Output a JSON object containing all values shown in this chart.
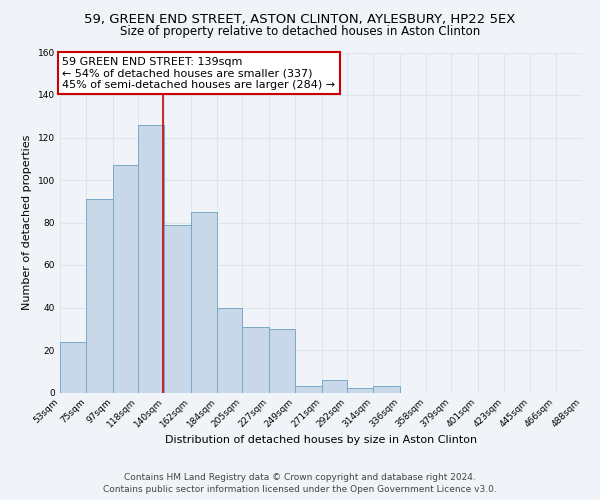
{
  "title": "59, GREEN END STREET, ASTON CLINTON, AYLESBURY, HP22 5EX",
  "subtitle": "Size of property relative to detached houses in Aston Clinton",
  "xlabel": "Distribution of detached houses by size in Aston Clinton",
  "ylabel": "Number of detached properties",
  "bin_edges": [
    53,
    75,
    97,
    118,
    140,
    162,
    184,
    205,
    227,
    249,
    271,
    292,
    314,
    336,
    358,
    379,
    401,
    423,
    445,
    466,
    488
  ],
  "bar_heights": [
    24,
    91,
    107,
    126,
    79,
    85,
    40,
    31,
    30,
    3,
    6,
    2,
    3,
    0,
    0,
    0,
    0,
    0,
    0,
    0
  ],
  "bar_color": "#c8d8e8",
  "bar_edgecolor": "#7aa8c8",
  "bar_linewidth": 0.7,
  "vline_x": 139,
  "vline_color": "#cc0000",
  "vline_linewidth": 1.2,
  "annotation_title": "59 GREEN END STREET: 139sqm",
  "annotation_line1": "← 54% of detached houses are smaller (337)",
  "annotation_line2": "45% of semi-detached houses are larger (284) →",
  "annotation_box_edgecolor": "#cc0000",
  "annotation_box_facecolor": "#ffffff",
  "ylim": [
    0,
    160
  ],
  "yticks": [
    0,
    20,
    40,
    60,
    80,
    100,
    120,
    140,
    160
  ],
  "tick_labels": [
    "53sqm",
    "75sqm",
    "97sqm",
    "118sqm",
    "140sqm",
    "162sqm",
    "184sqm",
    "205sqm",
    "227sqm",
    "249sqm",
    "271sqm",
    "292sqm",
    "314sqm",
    "336sqm",
    "358sqm",
    "379sqm",
    "401sqm",
    "423sqm",
    "445sqm",
    "466sqm",
    "488sqm"
  ],
  "footnote1": "Contains HM Land Registry data © Crown copyright and database right 2024.",
  "footnote2": "Contains public sector information licensed under the Open Government Licence v3.0.",
  "background_color": "#f0f4f8",
  "grid_color": "#dde6ef",
  "title_fontsize": 9.5,
  "subtitle_fontsize": 8.5,
  "axis_label_fontsize": 8,
  "tick_fontsize": 6.5,
  "annotation_fontsize": 8,
  "footnote_fontsize": 6.5
}
